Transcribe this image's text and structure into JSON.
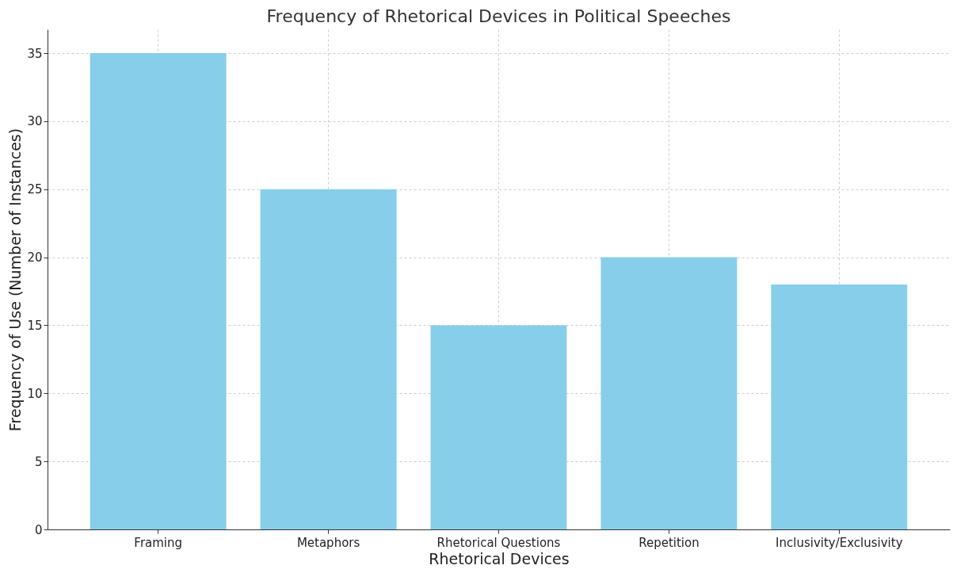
{
  "chart_data": {
    "type": "bar",
    "title": "Frequency of Rhetorical Devices in Political Speeches",
    "xlabel": "Rhetorical Devices",
    "ylabel": "Frequency of Use (Number of Instances)",
    "categories": [
      "Framing",
      "Metaphors",
      "Rhetorical Questions",
      "Repetition",
      "Inclusivity/Exclusivity"
    ],
    "values": [
      35,
      25,
      15,
      20,
      18
    ],
    "color": "#87ceeb",
    "ylim": [
      0,
      36.75
    ],
    "yticks": [
      0,
      5,
      10,
      15,
      20,
      25,
      30,
      35
    ],
    "grid": true
  }
}
